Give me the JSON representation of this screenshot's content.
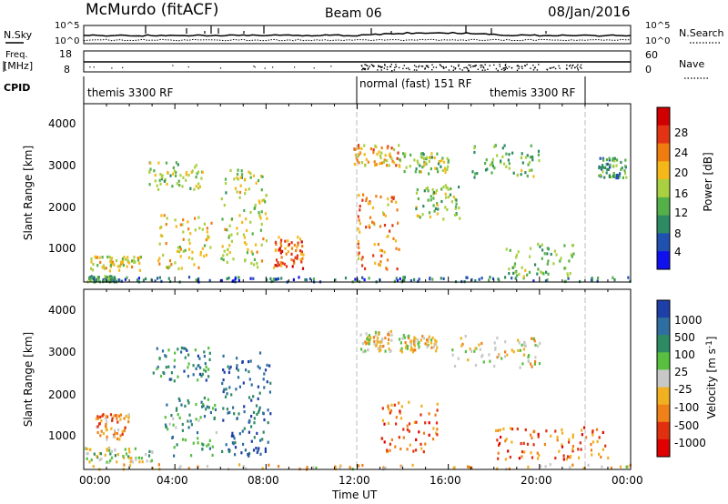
{
  "header": {
    "station": "McMurdo (fitACF)",
    "beam": "Beam 06",
    "date": "08/Jan/2016"
  },
  "noise_panel": {
    "left_label": "N.Sky",
    "right_label": "N.Search",
    "left_ticks": [
      "10^5",
      "10^0"
    ],
    "right_ticks": [
      "10^5",
      "10^0"
    ]
  },
  "freq_panel": {
    "left_label_1": "Freq.",
    "left_label_2": "[MHz]",
    "right_label": "Nave",
    "left_ticks": [
      "18",
      "8"
    ],
    "right_ticks": [
      "60",
      "0"
    ]
  },
  "cpid_panel": {
    "label": "CPID",
    "segments": [
      {
        "label": "themis 3300 RF",
        "start_hour": 0,
        "end_hour": 12
      },
      {
        "label": "normal (fast) 151 RF",
        "start_hour": 12,
        "end_hour": 22
      },
      {
        "label": "themis 3300 RF",
        "start_hour": 22,
        "end_hour": 24
      }
    ]
  },
  "x_axis": {
    "label": "Time UT",
    "ticks": [
      "00:00",
      "04:00",
      "08:00",
      "12:00",
      "16:00",
      "20:00",
      "00:00"
    ],
    "range_hours": [
      0,
      24
    ],
    "mode_change_hours": [
      12,
      22
    ]
  },
  "power_panel": {
    "ylabel": "Slant Range [km]",
    "yticks": [
      "1000",
      "2000",
      "3000",
      "4000"
    ],
    "colorbar_title": "Power [dB]",
    "colorbar_ticks": [
      "4",
      "8",
      "12",
      "16",
      "20",
      "24",
      "28"
    ],
    "colors": [
      "#1010ee",
      "#2050b0",
      "#2e8a62",
      "#54b048",
      "#a8d040",
      "#f4b818",
      "#f07c10",
      "#e23414",
      "#d00000"
    ]
  },
  "velocity_panel": {
    "ylabel": "Slant Range [km]",
    "yticks": [
      "1000",
      "2000",
      "3000",
      "4000"
    ],
    "colorbar_title": "Velocity [m s",
    "colorbar_title_sup": "-1",
    "colorbar_title_end": "]",
    "colorbar_ticks": [
      "1000",
      "500",
      "100",
      "25",
      "-25",
      "-100",
      "-500",
      "-1000"
    ],
    "colors": [
      "#1f3fa8",
      "#2f6ea0",
      "#2e8a62",
      "#58bf40",
      "#c8c8c8",
      "#f0b020",
      "#f08018",
      "#e03010",
      "#e00000"
    ]
  },
  "chart_data": {
    "type": "heatmap",
    "x_unit": "hours UT",
    "y_unit": "km",
    "xlim": [
      0,
      24
    ],
    "ylim": [
      180,
      4500
    ],
    "power_regions": [
      {
        "x": [
          0.1,
          1.4
        ],
        "y": [
          180,
          320
        ],
        "level": 0.35
      },
      {
        "x": [
          1.4,
          12.0
        ],
        "y": [
          180,
          300
        ],
        "level": 0.2
      },
      {
        "x": [
          12.0,
          24.0
        ],
        "y": [
          180,
          300
        ],
        "level": 0.25
      },
      {
        "x": [
          0.2,
          2.5
        ],
        "y": [
          450,
          800
        ],
        "level": 0.55
      },
      {
        "x": [
          2.8,
          5.2
        ],
        "y": [
          2400,
          3100
        ],
        "level": 0.45
      },
      {
        "x": [
          3.2,
          5.6
        ],
        "y": [
          500,
          1800
        ],
        "level": 0.6
      },
      {
        "x": [
          6.0,
          8.0
        ],
        "y": [
          500,
          2900
        ],
        "level": 0.5
      },
      {
        "x": [
          8.3,
          9.6
        ],
        "y": [
          500,
          1300
        ],
        "level": 0.75
      },
      {
        "x": [
          11.8,
          13.8
        ],
        "y": [
          3000,
          3500
        ],
        "level": 0.65
      },
      {
        "x": [
          12.0,
          13.8
        ],
        "y": [
          450,
          2300
        ],
        "level": 0.7
      },
      {
        "x": [
          13.8,
          16.0
        ],
        "y": [
          2800,
          3300
        ],
        "level": 0.45
      },
      {
        "x": [
          14.5,
          16.5
        ],
        "y": [
          1700,
          2600
        ],
        "level": 0.45
      },
      {
        "x": [
          17.0,
          20.0
        ],
        "y": [
          2700,
          3500
        ],
        "level": 0.4
      },
      {
        "x": [
          18.5,
          21.5
        ],
        "y": [
          300,
          1100
        ],
        "level": 0.4
      },
      {
        "x": [
          22.5,
          23.8
        ],
        "y": [
          2700,
          3200
        ],
        "level": 0.3
      }
    ],
    "velocity_regions": [
      {
        "x": [
          0.0,
          3.0
        ],
        "y": [
          350,
          700
        ],
        "level": 0.45
      },
      {
        "x": [
          0.5,
          2.0
        ],
        "y": [
          900,
          1500
        ],
        "level": 0.7
      },
      {
        "x": [
          3.0,
          5.5
        ],
        "y": [
          2300,
          3100
        ],
        "level": 0.25
      },
      {
        "x": [
          3.5,
          5.8
        ],
        "y": [
          500,
          1900
        ],
        "level": 0.3
      },
      {
        "x": [
          6.0,
          8.2
        ],
        "y": [
          500,
          3000
        ],
        "level": 0.15
      },
      {
        "x": [
          12.0,
          13.5
        ],
        "y": [
          3000,
          3500
        ],
        "level": 0.55
      },
      {
        "x": [
          13.8,
          15.5
        ],
        "y": [
          3000,
          3400
        ],
        "level": 0.55
      },
      {
        "x": [
          13.0,
          15.5
        ],
        "y": [
          600,
          1800
        ],
        "level": 0.75
      },
      {
        "x": [
          16.0,
          20.0
        ],
        "y": [
          2600,
          3400
        ],
        "level": 0.55
      },
      {
        "x": [
          18.0,
          23.0
        ],
        "y": [
          400,
          1200
        ],
        "level": 0.75
      },
      {
        "x": [
          0.0,
          24.0
        ],
        "y": [
          180,
          300
        ],
        "level": 0.6
      }
    ]
  }
}
